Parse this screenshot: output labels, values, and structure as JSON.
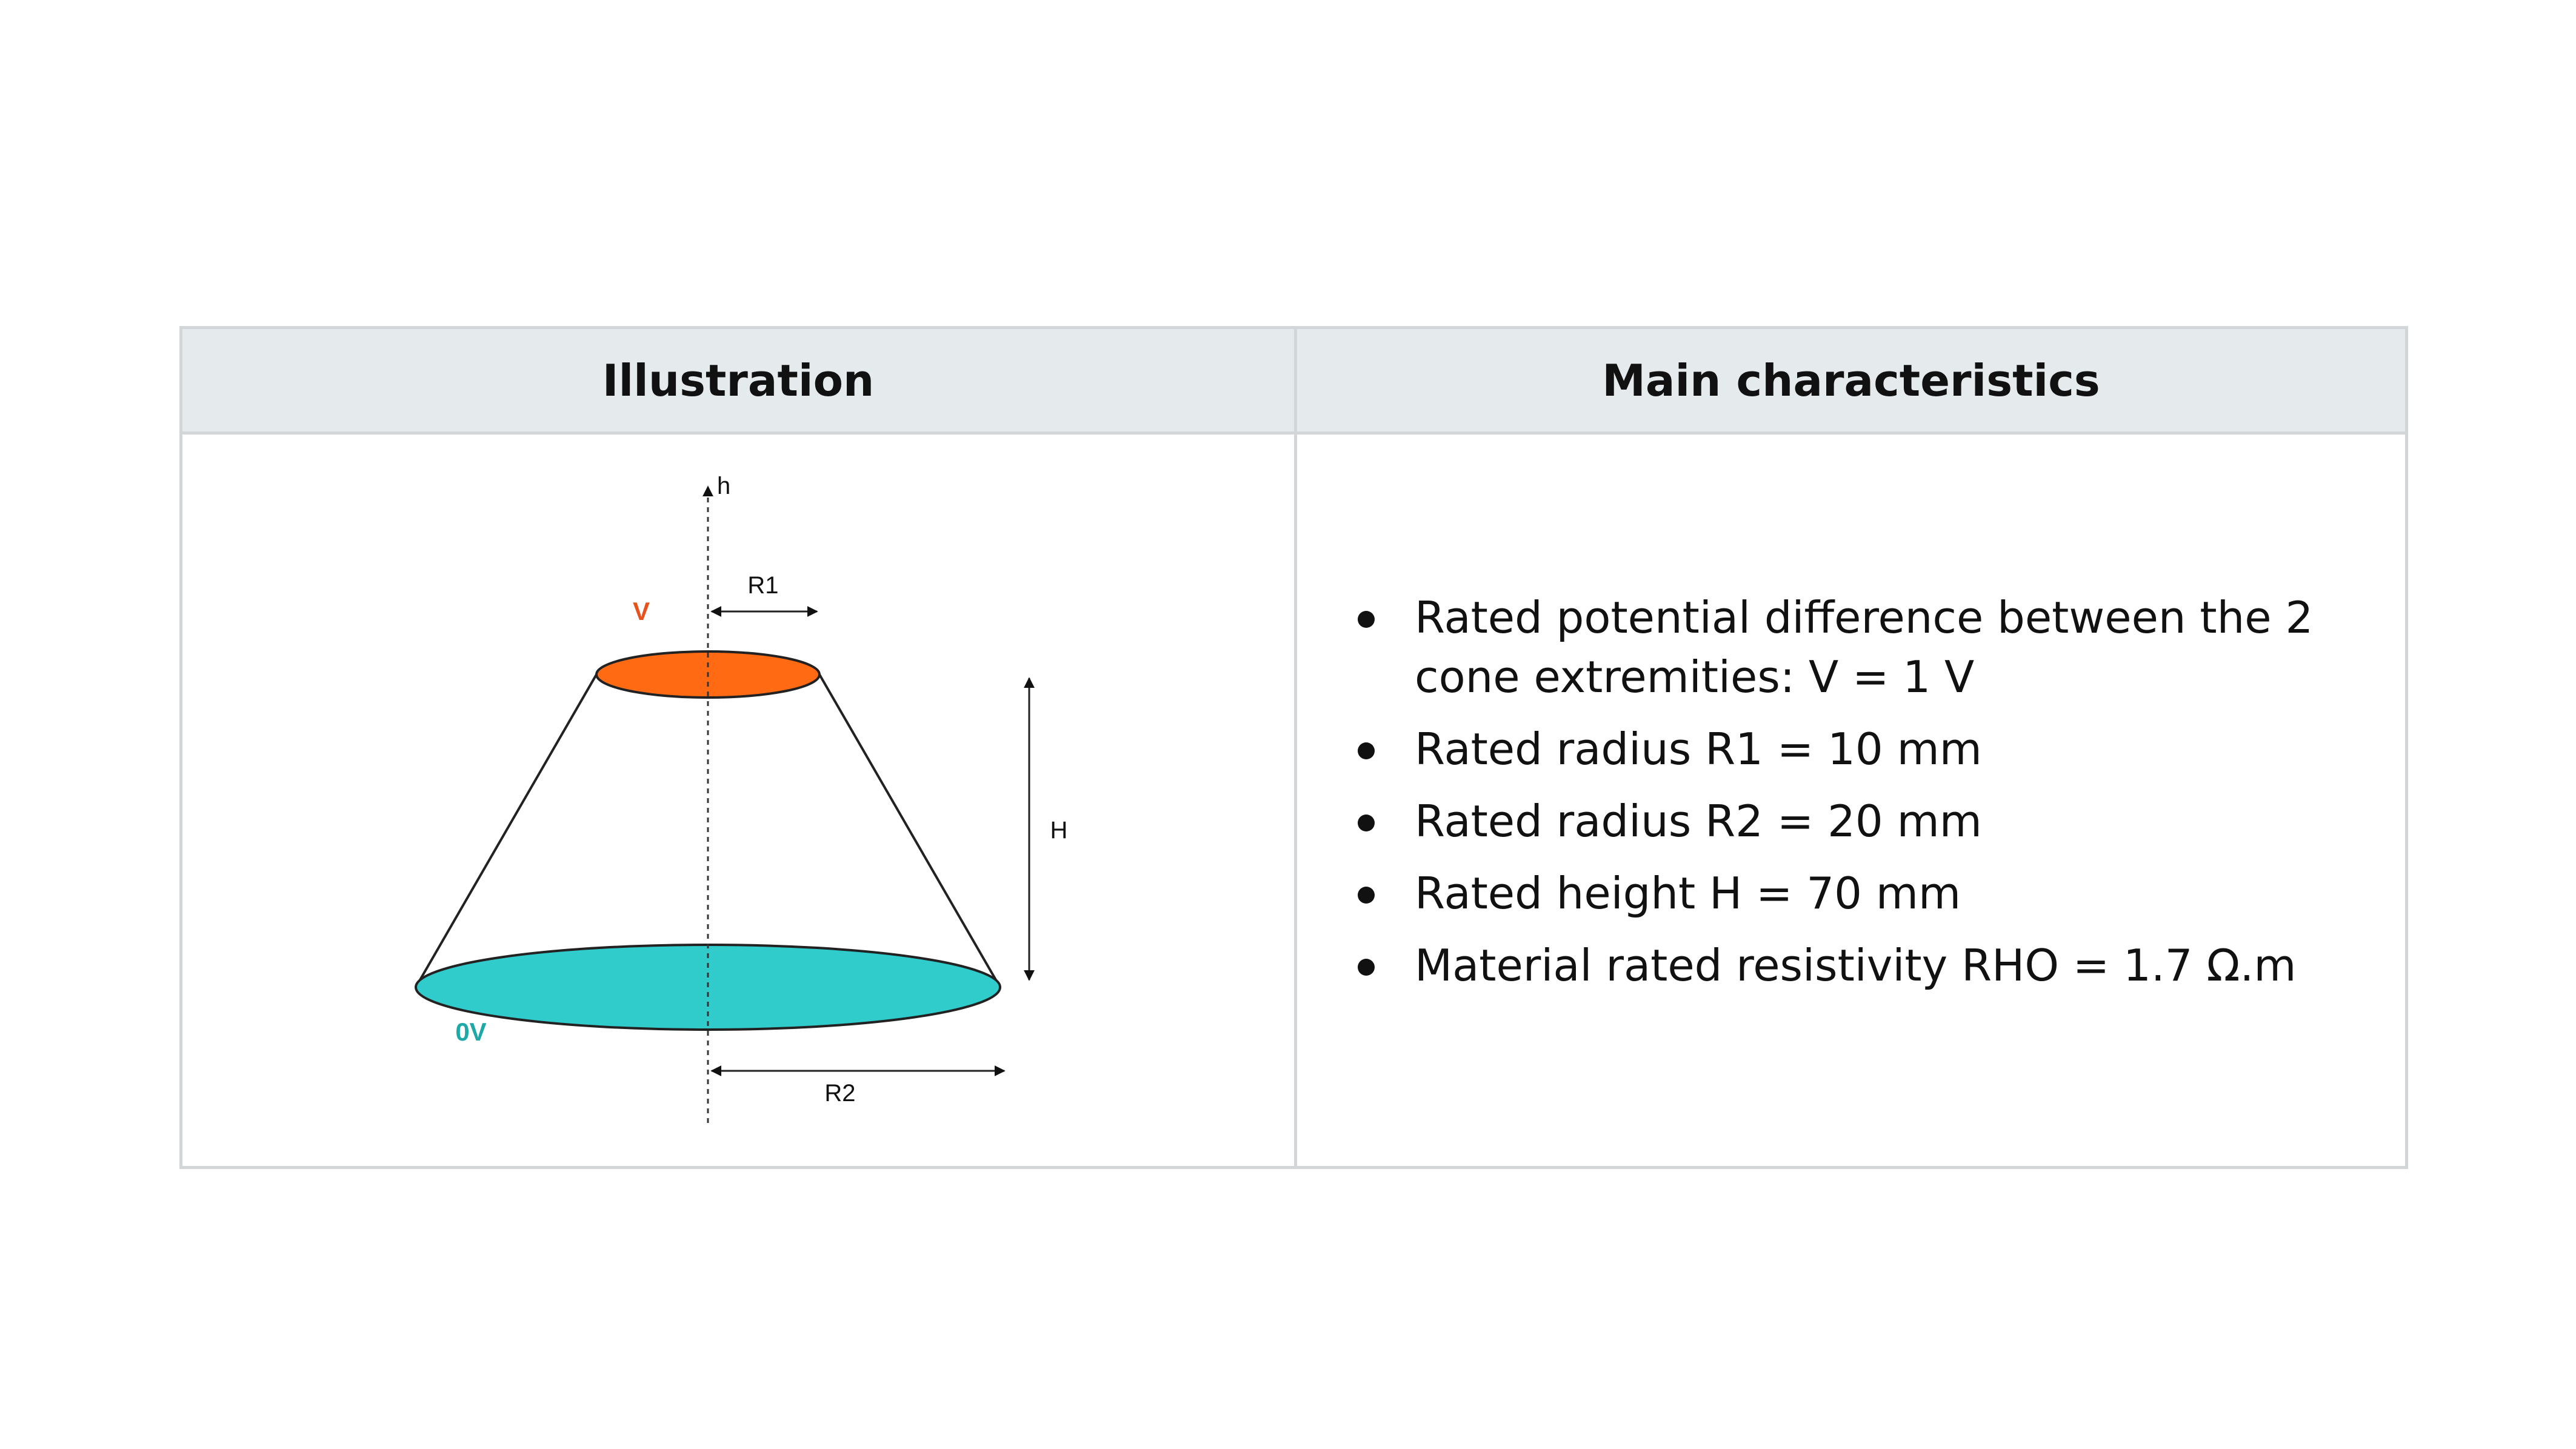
{
  "table": {
    "header": {
      "illustration": "Illustration",
      "characteristics": "Main characteristics"
    }
  },
  "diagram": {
    "labels": {
      "h": "h",
      "r1": "R1",
      "r2": "R2",
      "height": "H",
      "top_potential": "V",
      "bottom_potential": "0V"
    },
    "colors": {
      "top_face": "#ff6a13",
      "bottom_face": "#30cccc",
      "top_label": "#e8521a",
      "bottom_label": "#1ea8a8"
    }
  },
  "characteristics": [
    "Rated potential difference between the 2 cone extremities: V = 1 V",
    "Rated radius R1 = 10 mm",
    "Rated radius R2 = 20 mm",
    "Rated height H = 70 mm",
    "Material rated resistivity RHO = 1.7 Ω.m"
  ]
}
